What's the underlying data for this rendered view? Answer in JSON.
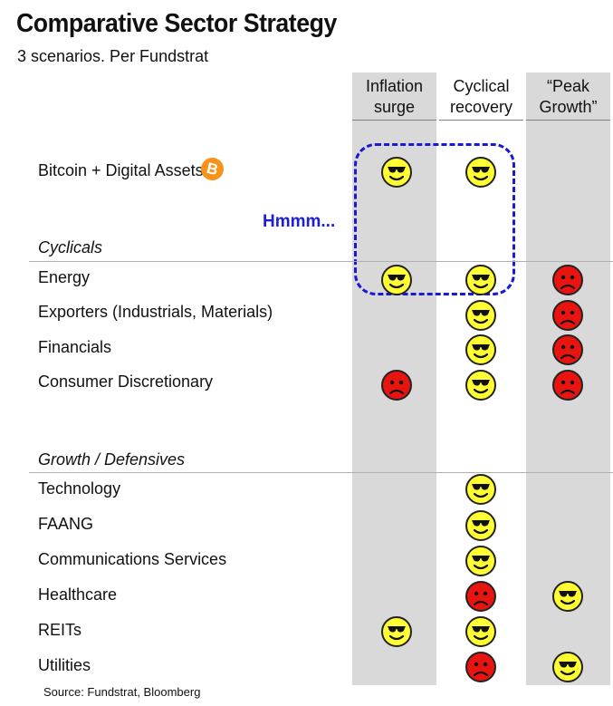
{
  "title": "Comparative Sector Strategy",
  "subtitle": "3 scenarios.  Per Fundstrat",
  "columns": [
    {
      "line1": "Inflation",
      "line2": "surge"
    },
    {
      "line1": "Cyclical",
      "line2": "recovery"
    },
    {
      "line1": "“Peak",
      "line2": "Growth”"
    }
  ],
  "bitcoin": {
    "label": "Bitcoin + Digital Assets",
    "icon": "bitcoin-icon",
    "icon_glyph": "B",
    "icon_color": "#f7931a"
  },
  "annotation": "Hmmm...",
  "sections": [
    {
      "name": "Cyclicals"
    },
    {
      "name": "Growth / Defensives"
    }
  ],
  "rows": [
    {
      "label": "Bitcoin + Digital Assets",
      "ratings": [
        "happy",
        "happy",
        null
      ]
    },
    {
      "label": "Energy",
      "ratings": [
        "happy",
        "happy",
        "sad"
      ]
    },
    {
      "label": "Exporters (Industrials, Materials)",
      "ratings": [
        null,
        "happy",
        "sad"
      ]
    },
    {
      "label": "Financials",
      "ratings": [
        null,
        "happy",
        "sad"
      ]
    },
    {
      "label": "Consumer Discretionary",
      "ratings": [
        "sad",
        "happy",
        "sad"
      ]
    },
    {
      "label": "Technology",
      "ratings": [
        null,
        "happy",
        null
      ]
    },
    {
      "label": "FAANG",
      "ratings": [
        null,
        "happy",
        null
      ]
    },
    {
      "label": "Communications Services",
      "ratings": [
        null,
        "happy",
        null
      ]
    },
    {
      "label": "Healthcare",
      "ratings": [
        null,
        "sad",
        "happy"
      ]
    },
    {
      "label": "REITs",
      "ratings": [
        "happy",
        "happy",
        null
      ]
    },
    {
      "label": "Utilities",
      "ratings": [
        null,
        "sad",
        "happy"
      ]
    }
  ],
  "colors": {
    "happy": "#ffff33",
    "sad": "#e8140f",
    "column_bg": "#d9d9d9",
    "highlight_box": "#1a1ad6"
  },
  "source": "Source: Fundstrat,  Bloomberg"
}
